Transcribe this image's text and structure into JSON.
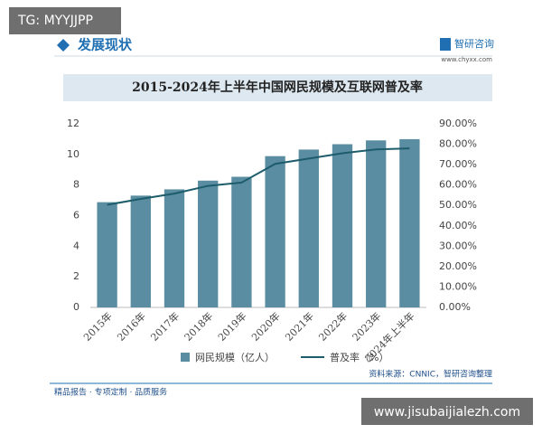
{
  "overlays": {
    "top_tag": "TG: MYYJJPP",
    "bottom_url": "www.jisubaijialezh.com"
  },
  "header": {
    "section": "发展现状",
    "brand": "智研咨询",
    "site": "www.chyxx.com"
  },
  "chart_data": {
    "type": "combo",
    "title": "2015-2024年上半年中国网民规模及互联网普及率",
    "categories": [
      "2015年",
      "2016年",
      "2017年",
      "2018年",
      "2019年",
      "2020年",
      "2021年",
      "2022年",
      "2023年",
      "2024年上半年"
    ],
    "series": [
      {
        "name": "网民规模（亿人）",
        "type": "bar",
        "color": "#5a8da1",
        "values": [
          6.88,
          7.31,
          7.72,
          8.29,
          8.54,
          9.89,
          10.32,
          10.67,
          10.92,
          11.0
        ]
      },
      {
        "name": "普及率（%）",
        "type": "line",
        "axis": "y2",
        "color": "#1d5c6b",
        "values": [
          50.3,
          53.2,
          55.8,
          59.6,
          61.2,
          70.4,
          73.0,
          75.6,
          77.5,
          78.0
        ]
      }
    ],
    "ylim": [
      0,
      12
    ],
    "yticks": [
      0,
      2,
      4,
      6,
      8,
      10,
      12
    ],
    "y2lim": [
      0,
      90
    ],
    "y2ticks": [
      {
        "value": 0,
        "label": "0.00%"
      },
      {
        "value": 10,
        "label": "10.00%"
      },
      {
        "value": 20,
        "label": "20.00%"
      },
      {
        "value": 30,
        "label": "30.00%"
      },
      {
        "value": 40,
        "label": "40.00%"
      },
      {
        "value": 50,
        "label": "50.00%"
      },
      {
        "value": 60,
        "label": "60.00%"
      },
      {
        "value": 70,
        "label": "70.00%"
      },
      {
        "value": 80,
        "label": "80.00%"
      },
      {
        "value": 90,
        "label": "90.00%"
      }
    ]
  },
  "footer": {
    "tagline": "精品报告 · 专项定制 · 品质服务",
    "source": "资料来源：CNNIC，智研咨询整理"
  }
}
